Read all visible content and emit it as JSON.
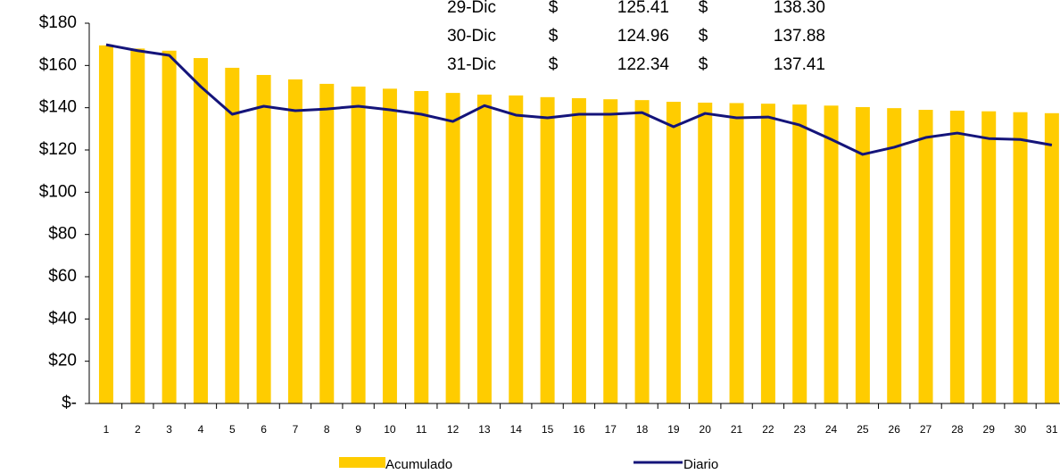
{
  "chart_data": {
    "type": "bar",
    "categories": [
      "1",
      "2",
      "3",
      "4",
      "5",
      "6",
      "7",
      "8",
      "9",
      "10",
      "11",
      "12",
      "13",
      "14",
      "15",
      "16",
      "17",
      "18",
      "19",
      "20",
      "21",
      "22",
      "23",
      "24",
      "25",
      "26",
      "27",
      "28",
      "29",
      "30",
      "31"
    ],
    "series": [
      {
        "name": "Acumulado",
        "type": "bar",
        "color": "#ffcc00",
        "values": [
          169.5,
          168,
          167,
          163.5,
          158.9,
          155.5,
          153.4,
          151.3,
          150,
          149,
          147.9,
          147,
          146.2,
          145.8,
          145,
          144.5,
          144,
          143.6,
          142.8,
          142.4,
          142.2,
          141.9,
          141.5,
          141,
          140.3,
          139.8,
          139,
          138.6,
          138.3,
          137.88,
          137.41
        ]
      },
      {
        "name": "Diario",
        "type": "line",
        "color": "#14147a",
        "values": [
          169.8,
          167,
          164.8,
          150,
          136.9,
          140.7,
          138.6,
          139.4,
          140.7,
          139,
          136.9,
          133.5,
          141,
          136.5,
          135.2,
          136.9,
          136.9,
          137.7,
          131,
          137.3,
          135.2,
          135.6,
          131.8,
          125,
          117.9,
          121.3,
          125.9,
          128,
          125.41,
          124.96,
          122.34
        ]
      }
    ],
    "ylim": [
      0,
      180
    ],
    "yticks": [
      {
        "value": 0,
        "label": "$-"
      },
      {
        "value": 20,
        "label": "$20"
      },
      {
        "value": 40,
        "label": "$40"
      },
      {
        "value": 60,
        "label": "$60"
      },
      {
        "value": 80,
        "label": "$80"
      },
      {
        "value": 100,
        "label": "$100"
      },
      {
        "value": 120,
        "label": "$120"
      },
      {
        "value": 140,
        "label": "$140"
      },
      {
        "value": 160,
        "label": "$160"
      },
      {
        "value": 180,
        "label": "$180"
      }
    ],
    "table": {
      "rows": [
        [
          "29-Dic",
          "$",
          "125.41",
          "$",
          "138.30"
        ],
        [
          "30-Dic",
          "$",
          "124.96",
          "$",
          "137.88"
        ],
        [
          "31-Dic",
          "$",
          "122.34",
          "$",
          "137.41"
        ]
      ]
    },
    "legend": "bottom"
  }
}
